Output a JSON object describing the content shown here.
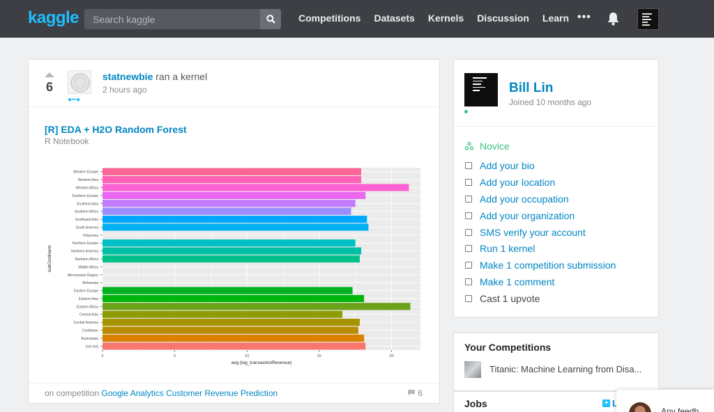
{
  "header": {
    "logo": "kaggle",
    "search_placeholder": "Search kaggle",
    "nav": [
      "Competitions",
      "Datasets",
      "Kernels",
      "Discussion",
      "Learn"
    ],
    "more": "•••"
  },
  "feed": {
    "votes": "6",
    "author": "statnewbie",
    "action": "ran a kernel",
    "time": "2 hours ago",
    "kernel_title": "[R] EDA + H2O Random Forest",
    "kernel_type": "R Notebook",
    "footer_prefix": "on competition",
    "competition": "Google Analytics Customer Revenue Prediction",
    "comments": "6"
  },
  "chart_data": {
    "type": "bar",
    "orientation": "horizontal",
    "xlabel": "avg (log_transactionRevenue)",
    "ylabel": "subContinent",
    "xlim": [
      0,
      22
    ],
    "xticks": [
      0,
      5,
      10,
      15,
      20
    ],
    "grid": true,
    "categories": [
      "Western Europe",
      "Western Asia",
      "Western Africa",
      "Southern Europe",
      "Southern Asia",
      "Southern Africa",
      "Southeast Asia",
      "South America",
      "Polynesia",
      "Northern Europe",
      "Northern America",
      "Northern Africa",
      "Middle Africa",
      "Micronesian Region",
      "Melanesia",
      "Eastern Europe",
      "Eastern Asia",
      "Eastern Africa",
      "Central Asia",
      "Central America",
      "Caribbean",
      "Australasia",
      "(not set)"
    ],
    "values": [
      17.9,
      17.9,
      21.2,
      18.2,
      17.5,
      17.2,
      18.3,
      18.4,
      0,
      17.5,
      17.9,
      17.8,
      0,
      0,
      0,
      17.3,
      18.1,
      21.3,
      16.6,
      17.8,
      17.7,
      18.1,
      18.2
    ],
    "colors": [
      "#ff6594",
      "#ff5fb4",
      "#ff61d4",
      "#e967f1",
      "#c27bff",
      "#998dff",
      "#00a8ff",
      "#00b0f3",
      "#00bde0",
      "#00c0c4",
      "#00bfa6",
      "#00c08a",
      "#00c068",
      "#00bc4a",
      "#00b52a",
      "#00b21f",
      "#00b60c",
      "#6ca21a",
      "#8d9c00",
      "#a59400",
      "#b98c00",
      "#da8200",
      "#f8766d"
    ]
  },
  "profile": {
    "name": "Bill Lin",
    "joined": "Joined 10 months ago",
    "tier": "Novice",
    "tasks": [
      {
        "label": "Add your bio",
        "done": false
      },
      {
        "label": "Add your location",
        "done": false
      },
      {
        "label": "Add your occupation",
        "done": false
      },
      {
        "label": "Add your organization",
        "done": false
      },
      {
        "label": "SMS verify your account",
        "done": false
      },
      {
        "label": "Run 1 kernel",
        "done": false
      },
      {
        "label": "Make 1 competition submission",
        "done": false
      },
      {
        "label": "Make 1 comment",
        "done": false
      },
      {
        "label": "Cast 1 upvote",
        "done": true
      }
    ]
  },
  "your_competitions": {
    "title": "Your Competitions",
    "item": "Titanic: Machine Learning from Disa..."
  },
  "jobs": {
    "title": "Jobs",
    "link": "L"
  },
  "chat": {
    "text": "Any feedb"
  }
}
